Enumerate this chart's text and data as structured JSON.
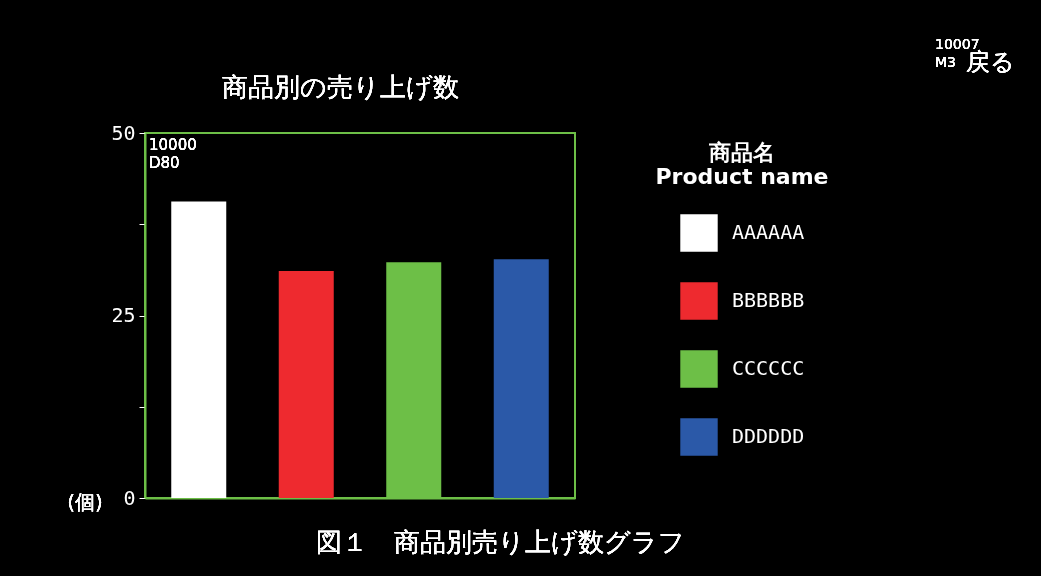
{
  "chart_data": {
    "type": "bar",
    "title": "商品別の売り上げ数",
    "ylabel": "(個)",
    "legend_title": "商品名\nProduct name",
    "categories": [
      null,
      null,
      null,
      null
    ],
    "series": [
      {
        "name": "AAAAAA",
        "color": "#ffffff",
        "values": [
          40.6,
          null,
          null,
          null
        ]
      },
      {
        "name": "BBBBBB",
        "color": "#ee2a2f",
        "values": [
          null,
          31.1,
          null,
          null
        ]
      },
      {
        "name": "CCCCCC",
        "color": "#6dbf47",
        "values": [
          null,
          null,
          32.3,
          null
        ]
      },
      {
        "name": "DDDDDD",
        "color": "#2b59a8",
        "values": [
          null,
          null,
          null,
          32.7
        ]
      }
    ],
    "ylim": [
      0,
      50
    ],
    "yticks": [
      0,
      {
        "value": 12.5,
        "label": null
      },
      25,
      {
        "value": 37.5,
        "label": null
      },
      50
    ],
    "grid": false,
    "legend": "right",
    "tick_labels": "y",
    "annotations": [
      "10000",
      "D80",
      "10007",
      "M3",
      "戻る",
      "図１　商品別売り上げ数グラフ"
    ]
  }
}
